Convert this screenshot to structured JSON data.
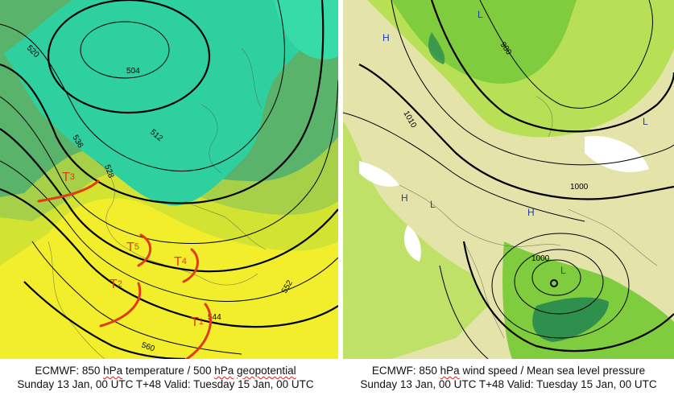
{
  "left_map": {
    "contour_labels": [
      "504",
      "512",
      "520",
      "528",
      "536",
      "544",
      "552",
      "560"
    ],
    "trough_labels": [
      {
        "letter": "T",
        "number": "1"
      },
      {
        "letter": "T",
        "number": "2"
      },
      {
        "letter": "T",
        "number": "3"
      },
      {
        "letter": "T",
        "number": "4"
      },
      {
        "letter": "T",
        "number": "5"
      }
    ],
    "colors": {
      "cold": "#2fd2a3",
      "cool": "#4ab86f",
      "mild": "#a4d14a",
      "warm": "#d6e52a",
      "hot": "#f4f02a",
      "troughs": "#e23a14"
    },
    "caption": {
      "line1_prefix": "ECMWF: 850 ",
      "hpa_a": "hPa",
      "line1_middle": " temperature / 500 ",
      "hpa_b": "hPa",
      "line1_space": " ",
      "geo": "geopotential",
      "line2": "Sunday 13 Jan, 00 UTC T+48 Valid: Tuesday 15 Jan, 00 UTC"
    }
  },
  "right_map": {
    "isobar_labels": [
      "980",
      "1000",
      "1000",
      "1010"
    ],
    "pressure_centres": [
      "H",
      "H",
      "H",
      "L",
      "L",
      "L",
      "L"
    ],
    "colors": {
      "calm": "#f3d7b8",
      "light": "#d7ec9a",
      "moderate": "#b4e054",
      "strong": "#7ccb3c",
      "very_strong": "#2d8a4a"
    },
    "caption": {
      "line1_prefix": "ECMWF: 850 ",
      "hpa": "hPa",
      "line1_suffix": " wind speed / Mean sea level pressure",
      "line2": "Sunday 13 Jan, 00 UTC T+48 Valid: Tuesday 15 Jan, 00 UTC"
    }
  }
}
